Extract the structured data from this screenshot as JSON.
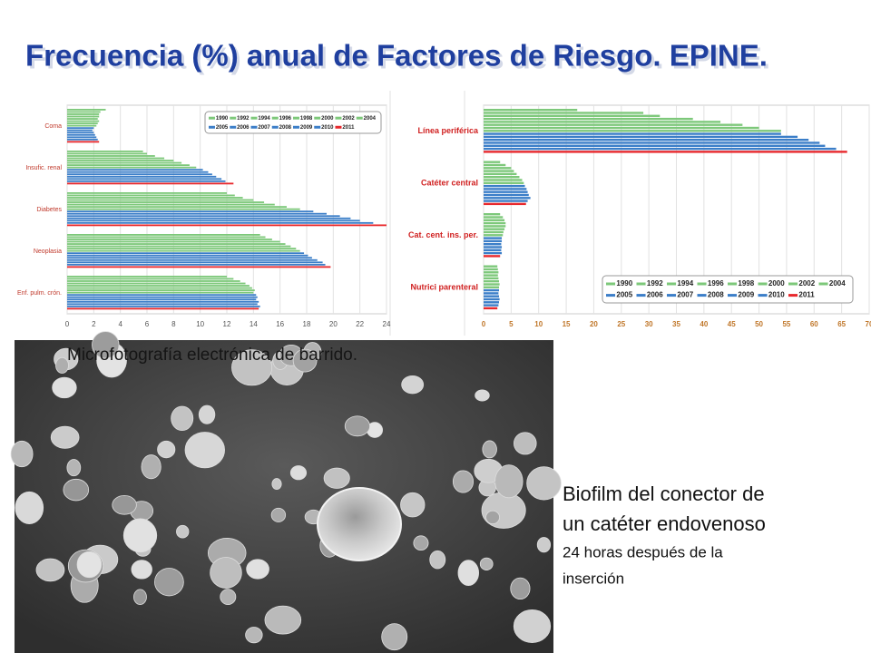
{
  "slide": {
    "title": "Frecuencia (%) anual de Factores de Riesgo. EPINE.",
    "photo_caption": "Microfotografía electrónica de barrido.",
    "caption_lines": [
      "Biofilm del conector de",
      "un catéter endovenoso"
    ],
    "detail_lines": [
      "24 horas después de la",
      "inserción"
    ]
  },
  "chart_data": [
    {
      "type": "barh",
      "categories": [
        "Coma",
        "Insufic. renal",
        "Diabetes",
        "Neoplasia",
        "Enf. pulm. crón."
      ],
      "series": [
        {
          "name": "1990",
          "color": "#7dc87a",
          "values": [
            2.9,
            5.7,
            12.0,
            14.5,
            12.0
          ]
        },
        {
          "name": "1992",
          "color": "#7dc87a",
          "values": [
            2.5,
            6.0,
            12.6,
            14.9,
            12.5
          ]
        },
        {
          "name": "1994",
          "color": "#7dc87a",
          "values": [
            2.4,
            6.6,
            13.2,
            15.4,
            13.0
          ]
        },
        {
          "name": "1996",
          "color": "#7dc87a",
          "values": [
            2.4,
            7.3,
            14.0,
            16.0,
            13.4
          ]
        },
        {
          "name": "1998",
          "color": "#7dc87a",
          "values": [
            2.3,
            8.0,
            14.8,
            16.4,
            13.7
          ]
        },
        {
          "name": "2000",
          "color": "#7dc87a",
          "values": [
            2.4,
            8.6,
            15.6,
            16.8,
            13.9
          ]
        },
        {
          "name": "2002",
          "color": "#7dc87a",
          "values": [
            2.3,
            9.2,
            16.5,
            17.2,
            14.1
          ]
        },
        {
          "name": "2004",
          "color": "#7dc87a",
          "values": [
            2.2,
            9.7,
            17.5,
            17.5,
            14.0
          ]
        },
        {
          "name": "2005",
          "color": "#3b7ec8",
          "values": [
            2.0,
            10.2,
            18.5,
            17.8,
            14.2
          ]
        },
        {
          "name": "2006",
          "color": "#3b7ec8",
          "values": [
            1.9,
            10.6,
            19.5,
            18.1,
            14.3
          ]
        },
        {
          "name": "2007",
          "color": "#3b7ec8",
          "values": [
            2.0,
            10.9,
            20.5,
            18.4,
            14.2
          ]
        },
        {
          "name": "2008",
          "color": "#3b7ec8",
          "values": [
            2.1,
            11.2,
            21.3,
            18.8,
            14.4
          ]
        },
        {
          "name": "2009",
          "color": "#3b7ec8",
          "values": [
            2.2,
            11.6,
            22.0,
            19.2,
            14.3
          ]
        },
        {
          "name": "2010",
          "color": "#3b7ec8",
          "values": [
            2.3,
            11.9,
            23.0,
            19.4,
            14.5
          ]
        },
        {
          "name": "2011",
          "color": "#e8282c",
          "values": [
            2.4,
            12.5,
            24.0,
            19.8,
            14.4
          ]
        }
      ],
      "xlim": [
        0,
        24
      ],
      "xticks": [
        0,
        2,
        4,
        6,
        8,
        10,
        12,
        14,
        16,
        18,
        20,
        22,
        24
      ],
      "grid": true,
      "legend": "upper right"
    },
    {
      "type": "barh",
      "categories": [
        "Línea periférica",
        "Catéter central",
        "Cat. cent. ins. per.",
        "Nutrici parenteral"
      ],
      "series": [
        {
          "name": "1990",
          "color": "#7dc87a",
          "values": [
            17,
            3.0,
            3.0,
            2.5
          ]
        },
        {
          "name": "1992",
          "color": "#7dc87a",
          "values": [
            29,
            4.0,
            3.5,
            2.6
          ]
        },
        {
          "name": "1994",
          "color": "#7dc87a",
          "values": [
            32,
            5.0,
            3.8,
            2.7
          ]
        },
        {
          "name": "1996",
          "color": "#7dc87a",
          "values": [
            38,
            5.5,
            4.0,
            2.6
          ]
        },
        {
          "name": "1998",
          "color": "#7dc87a",
          "values": [
            43,
            6.0,
            4.0,
            2.7
          ]
        },
        {
          "name": "2000",
          "color": "#7dc87a",
          "values": [
            47,
            6.5,
            3.8,
            2.8
          ]
        },
        {
          "name": "2002",
          "color": "#7dc87a",
          "values": [
            50,
            7.0,
            3.6,
            2.9
          ]
        },
        {
          "name": "2004",
          "color": "#7dc87a",
          "values": [
            54,
            7.3,
            3.5,
            2.8
          ]
        },
        {
          "name": "2005",
          "color": "#3b7ec8",
          "values": [
            54,
            7.5,
            3.3,
            2.8
          ]
        },
        {
          "name": "2006",
          "color": "#3b7ec8",
          "values": [
            57,
            7.8,
            3.3,
            2.7
          ]
        },
        {
          "name": "2007",
          "color": "#3b7ec8",
          "values": [
            59,
            8.0,
            3.2,
            2.8
          ]
        },
        {
          "name": "2008",
          "color": "#3b7ec8",
          "values": [
            61,
            8.2,
            3.3,
            2.9
          ]
        },
        {
          "name": "2009",
          "color": "#3b7ec8",
          "values": [
            62,
            8.5,
            3.2,
            2.8
          ]
        },
        {
          "name": "2010",
          "color": "#3b7ec8",
          "values": [
            64,
            8.0,
            3.3,
            2.7
          ]
        },
        {
          "name": "2011",
          "color": "#e8282c",
          "values": [
            66,
            7.7,
            3.0,
            2.5
          ]
        }
      ],
      "xlim": [
        0,
        70
      ],
      "xticks": [
        0,
        5,
        10,
        15,
        20,
        25,
        30,
        35,
        40,
        45,
        50,
        55,
        60,
        65,
        70
      ],
      "grid": true,
      "legend": "lower right"
    }
  ]
}
